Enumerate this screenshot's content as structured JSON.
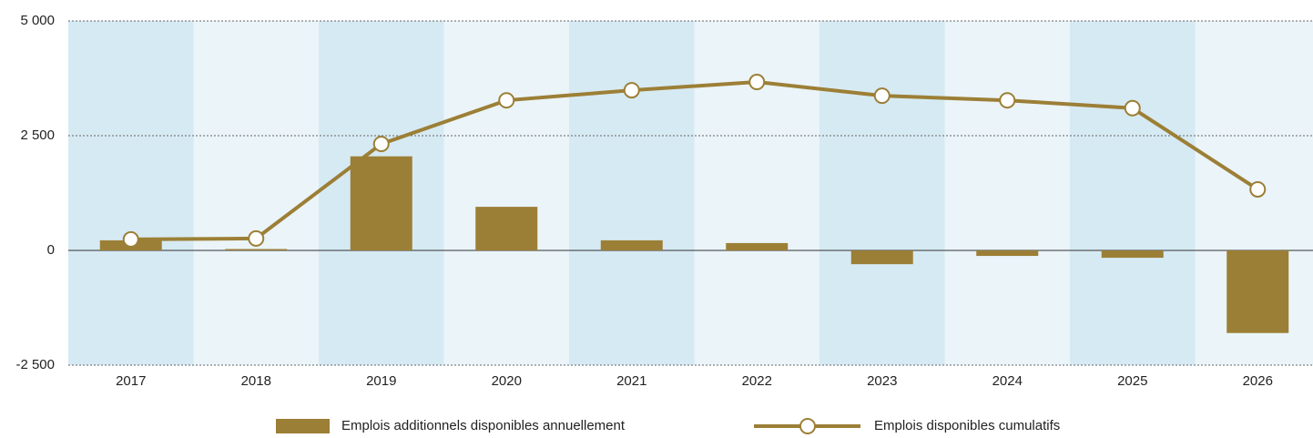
{
  "chart_data": {
    "type": "bar",
    "categories": [
      "2017",
      "2018",
      "2019",
      "2020",
      "2021",
      "2022",
      "2023",
      "2024",
      "2025",
      "2026"
    ],
    "series": [
      {
        "name": "Emplois additionnels disponibles annuellement",
        "type": "bar",
        "color": "#9c7f36",
        "values": [
          220,
          30,
          2050,
          950,
          220,
          160,
          -300,
          -120,
          -160,
          -1800
        ]
      },
      {
        "name": "Emplois disponibles cumulatifs",
        "type": "line",
        "color": "#9c7f36",
        "values": [
          240,
          260,
          2320,
          3270,
          3490,
          3670,
          3370,
          3270,
          3100,
          1330
        ]
      }
    ],
    "ylim": [
      -2500,
      5000
    ],
    "yticks": [
      {
        "value": -2500,
        "label": "-2 500"
      },
      0,
      {
        "value": 2500,
        "label": "2 500"
      },
      {
        "value": 5000,
        "label": "5 000"
      }
    ],
    "grid": true,
    "legend": "bottom"
  }
}
